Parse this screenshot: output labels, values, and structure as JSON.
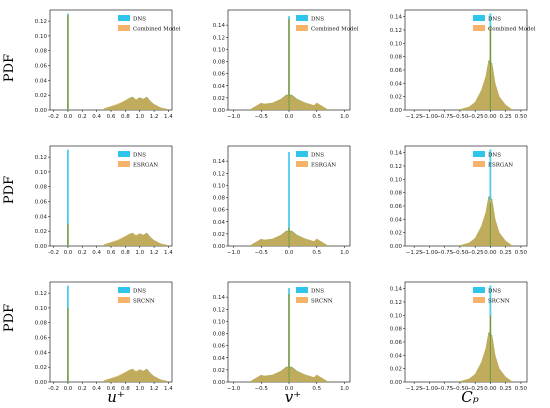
{
  "figure": {
    "row_ylabel": "PDF",
    "col_xlabels": [
      "u⁺",
      "v⁺",
      "Cₚ"
    ]
  },
  "colors": {
    "dns": "#2ec4ec",
    "model": "#f7b36a",
    "overlap": "#6e9a3a"
  },
  "chart_data": [
    {
      "type": "area",
      "row": 0,
      "col": 0,
      "legend": [
        "DNS",
        "Combined Model"
      ],
      "xlim": [
        -0.25,
        1.45
      ],
      "ylim": [
        0,
        0.135
      ],
      "xticks": [
        -0.2,
        0.0,
        0.2,
        0.4,
        0.6,
        0.8,
        1.0,
        1.2,
        1.4
      ],
      "xtick_labels": [
        "-0.2",
        "0.0",
        "0.2",
        "0.4",
        "0.6",
        "0.8",
        "1.0",
        "1.2",
        "1.4"
      ],
      "yticks": [
        0,
        0.02,
        0.04,
        0.06,
        0.08,
        0.1,
        0.12
      ],
      "ytick_labels": [
        "0.00",
        "0.02",
        "0.04",
        "0.06",
        "0.08",
        "0.10",
        "0.12"
      ],
      "series": [
        {
          "name": "DNS",
          "spikes": [
            [
              0.0,
              0.13
            ]
          ],
          "x": [
            0.5,
            0.6,
            0.7,
            0.8,
            0.85,
            0.9,
            0.95,
            1.0,
            1.05,
            1.1,
            1.15,
            1.2,
            1.3,
            1.4
          ],
          "y": [
            0.002,
            0.005,
            0.008,
            0.013,
            0.016,
            0.018,
            0.014,
            0.017,
            0.015,
            0.018,
            0.012,
            0.008,
            0.003,
            0.001
          ]
        },
        {
          "name": "Combined Model",
          "spikes": [
            [
              0.0,
              0.128
            ]
          ],
          "x": [
            0.5,
            0.6,
            0.7,
            0.8,
            0.85,
            0.9,
            0.95,
            1.0,
            1.05,
            1.1,
            1.15,
            1.2,
            1.3,
            1.4
          ],
          "y": [
            0.002,
            0.005,
            0.009,
            0.013,
            0.016,
            0.017,
            0.014,
            0.016,
            0.015,
            0.017,
            0.012,
            0.008,
            0.003,
            0.001
          ]
        }
      ]
    },
    {
      "type": "area",
      "row": 0,
      "col": 1,
      "legend": [
        "DNS",
        "Combined Model"
      ],
      "xlim": [
        -1.1,
        1.1
      ],
      "ylim": [
        0,
        0.165
      ],
      "xticks": [
        -1.0,
        -0.5,
        0.0,
        0.5,
        1.0
      ],
      "xtick_labels": [
        "−1.0",
        "−0.5",
        "0.0",
        "0.5",
        "1.0"
      ],
      "yticks": [
        0,
        0.02,
        0.04,
        0.06,
        0.08,
        0.1,
        0.12,
        0.14
      ],
      "ytick_labels": [
        "0.00",
        "0.02",
        "0.04",
        "0.06",
        "0.08",
        "0.10",
        "0.12",
        "0.14"
      ],
      "series": [
        {
          "name": "DNS",
          "spikes": [
            [
              0.0,
              0.155
            ]
          ],
          "x": [
            -0.7,
            -0.5,
            -0.45,
            -0.3,
            -0.15,
            -0.05,
            0.05,
            0.15,
            0.3,
            0.45,
            0.5,
            0.7
          ],
          "y": [
            0.001,
            0.012,
            0.01,
            0.012,
            0.018,
            0.025,
            0.025,
            0.018,
            0.012,
            0.008,
            0.012,
            0.001
          ]
        },
        {
          "name": "Combined Model",
          "spikes": [
            [
              0.0,
              0.15
            ]
          ],
          "x": [
            -0.7,
            -0.5,
            -0.45,
            -0.3,
            -0.15,
            -0.05,
            0.05,
            0.15,
            0.3,
            0.45,
            0.5,
            0.7
          ],
          "y": [
            0.001,
            0.012,
            0.01,
            0.012,
            0.017,
            0.024,
            0.024,
            0.017,
            0.012,
            0.008,
            0.012,
            0.001
          ]
        }
      ]
    },
    {
      "type": "area",
      "row": 0,
      "col": 2,
      "legend": [
        "DNS",
        "Combined Model"
      ],
      "xlim": [
        -1.4,
        0.6
      ],
      "ylim": [
        0,
        0.15
      ],
      "xticks": [
        -1.25,
        -1.0,
        -0.75,
        -0.5,
        -0.25,
        0.0,
        0.25,
        0.5
      ],
      "xtick_labels": [
        "−1.25",
        "−1.00",
        "−0.75",
        "−0.50",
        "−0.25",
        "0.00",
        "0.25",
        "0.50"
      ],
      "yticks": [
        0,
        0.02,
        0.04,
        0.06,
        0.08,
        0.1,
        0.12,
        0.14
      ],
      "ytick_labels": [
        "0.00",
        "0.02",
        "0.04",
        "0.06",
        "0.08",
        "0.10",
        "0.12",
        "0.14"
      ],
      "series": [
        {
          "name": "DNS",
          "spikes": [
            [
              0.0,
              0.145
            ]
          ],
          "x": [
            -0.5,
            -0.35,
            -0.25,
            -0.15,
            -0.08,
            -0.03,
            0.03,
            0.08,
            0.15,
            0.25,
            0.35
          ],
          "y": [
            0.001,
            0.005,
            0.012,
            0.03,
            0.05,
            0.075,
            0.07,
            0.04,
            0.02,
            0.008,
            0.001
          ]
        },
        {
          "name": "Combined Model",
          "spikes": [
            [
              0.0,
              0.125
            ]
          ],
          "x": [
            -0.5,
            -0.35,
            -0.25,
            -0.15,
            -0.08,
            -0.03,
            0.03,
            0.08,
            0.15,
            0.25,
            0.35
          ],
          "y": [
            0.001,
            0.005,
            0.012,
            0.03,
            0.05,
            0.072,
            0.068,
            0.04,
            0.02,
            0.008,
            0.001
          ]
        }
      ]
    },
    {
      "type": "area",
      "row": 1,
      "col": 0,
      "legend": [
        "DNS",
        "ESRGAN"
      ],
      "xlim": [
        -0.25,
        1.45
      ],
      "ylim": [
        0,
        0.135
      ],
      "xticks": [
        -0.2,
        0.0,
        0.2,
        0.4,
        0.6,
        0.8,
        1.0,
        1.2,
        1.4
      ],
      "xtick_labels": [
        "-0.2",
        "0.0",
        "0.2",
        "0.4",
        "0.6",
        "0.8",
        "1.0",
        "1.2",
        "1.4"
      ],
      "yticks": [
        0,
        0.02,
        0.04,
        0.06,
        0.08,
        0.1,
        0.12
      ],
      "ytick_labels": [
        "0.00",
        "0.02",
        "0.04",
        "0.06",
        "0.08",
        "0.10",
        "0.12"
      ],
      "series": [
        {
          "name": "DNS",
          "spikes": [
            [
              0.0,
              0.13
            ]
          ],
          "x": [
            0.5,
            0.6,
            0.7,
            0.8,
            0.85,
            0.9,
            0.95,
            1.0,
            1.05,
            1.1,
            1.15,
            1.2,
            1.3,
            1.4
          ],
          "y": [
            0.002,
            0.005,
            0.008,
            0.013,
            0.016,
            0.018,
            0.014,
            0.017,
            0.015,
            0.018,
            0.012,
            0.008,
            0.003,
            0.001
          ]
        },
        {
          "name": "ESRGAN",
          "spikes": [
            [
              0.0,
              0.03
            ]
          ],
          "x": [
            0.5,
            0.6,
            0.7,
            0.8,
            0.85,
            0.9,
            0.95,
            1.0,
            1.05,
            1.1,
            1.15,
            1.2,
            1.3,
            1.4
          ],
          "y": [
            0.002,
            0.005,
            0.009,
            0.014,
            0.016,
            0.018,
            0.015,
            0.017,
            0.015,
            0.017,
            0.012,
            0.008,
            0.003,
            0.001
          ]
        }
      ]
    },
    {
      "type": "area",
      "row": 1,
      "col": 1,
      "legend": [
        "DNS",
        "ESRGAN"
      ],
      "xlim": [
        -1.1,
        1.1
      ],
      "ylim": [
        0,
        0.165
      ],
      "xticks": [
        -1.0,
        -0.5,
        0.0,
        0.5,
        1.0
      ],
      "xtick_labels": [
        "−1.0",
        "−0.5",
        "0.0",
        "0.5",
        "1.0"
      ],
      "yticks": [
        0,
        0.02,
        0.04,
        0.06,
        0.08,
        0.1,
        0.12,
        0.14
      ],
      "ytick_labels": [
        "0.00",
        "0.02",
        "0.04",
        "0.06",
        "0.08",
        "0.10",
        "0.12",
        "0.14"
      ],
      "series": [
        {
          "name": "DNS",
          "spikes": [
            [
              0.0,
              0.155
            ]
          ],
          "x": [
            -0.7,
            -0.5,
            -0.45,
            -0.3,
            -0.15,
            -0.05,
            0.05,
            0.15,
            0.3,
            0.45,
            0.5,
            0.7
          ],
          "y": [
            0.001,
            0.012,
            0.01,
            0.012,
            0.018,
            0.025,
            0.025,
            0.018,
            0.012,
            0.008,
            0.012,
            0.001
          ]
        },
        {
          "name": "ESRGAN",
          "spikes": [
            [
              0.0,
              0.03
            ]
          ],
          "x": [
            -0.7,
            -0.5,
            -0.45,
            -0.3,
            -0.15,
            -0.05,
            0.05,
            0.15,
            0.3,
            0.45,
            0.5,
            0.7
          ],
          "y": [
            0.001,
            0.012,
            0.01,
            0.012,
            0.017,
            0.024,
            0.024,
            0.017,
            0.012,
            0.008,
            0.012,
            0.001
          ]
        }
      ]
    },
    {
      "type": "area",
      "row": 1,
      "col": 2,
      "legend": [
        "DNS",
        "ESRGAN"
      ],
      "xlim": [
        -1.4,
        0.6
      ],
      "ylim": [
        0,
        0.15
      ],
      "xticks": [
        -1.25,
        -1.0,
        -0.75,
        -0.5,
        -0.25,
        0.0,
        0.25,
        0.5
      ],
      "xtick_labels": [
        "−1.25",
        "−1.00",
        "−0.75",
        "−0.50",
        "−0.25",
        "0.00",
        "0.25",
        "0.50"
      ],
      "yticks": [
        0,
        0.02,
        0.04,
        0.06,
        0.08,
        0.1,
        0.12,
        0.14
      ],
      "ytick_labels": [
        "0.00",
        "0.02",
        "0.04",
        "0.06",
        "0.08",
        "0.10",
        "0.12",
        "0.14"
      ],
      "series": [
        {
          "name": "DNS",
          "spikes": [
            [
              0.0,
              0.145
            ]
          ],
          "x": [
            -0.5,
            -0.35,
            -0.25,
            -0.15,
            -0.08,
            -0.03,
            0.03,
            0.08,
            0.15,
            0.25,
            0.35
          ],
          "y": [
            0.001,
            0.005,
            0.012,
            0.03,
            0.05,
            0.075,
            0.07,
            0.04,
            0.02,
            0.008,
            0.001
          ]
        },
        {
          "name": "ESRGAN",
          "spikes": [
            [
              0.0,
              0.065
            ]
          ],
          "x": [
            -0.5,
            -0.35,
            -0.25,
            -0.15,
            -0.08,
            -0.03,
            0.03,
            0.08,
            0.15,
            0.25,
            0.35
          ],
          "y": [
            0.001,
            0.005,
            0.012,
            0.03,
            0.05,
            0.072,
            0.068,
            0.04,
            0.02,
            0.008,
            0.001
          ]
        }
      ]
    },
    {
      "type": "area",
      "row": 2,
      "col": 0,
      "legend": [
        "DNS",
        "SRCNN"
      ],
      "xlim": [
        -0.25,
        1.45
      ],
      "ylim": [
        0,
        0.135
      ],
      "xticks": [
        -0.2,
        0.0,
        0.2,
        0.4,
        0.6,
        0.8,
        1.0,
        1.2,
        1.4
      ],
      "xtick_labels": [
        "-0.2",
        "0.0",
        "0.2",
        "0.4",
        "0.6",
        "0.8",
        "1.0",
        "1.2",
        "1.4"
      ],
      "yticks": [
        0,
        0.02,
        0.04,
        0.06,
        0.08,
        0.1,
        0.12
      ],
      "ytick_labels": [
        "0.00",
        "0.02",
        "0.04",
        "0.06",
        "0.08",
        "0.10",
        "0.12"
      ],
      "series": [
        {
          "name": "DNS",
          "spikes": [
            [
              0.0,
              0.13
            ]
          ],
          "x": [
            0.5,
            0.6,
            0.7,
            0.8,
            0.85,
            0.9,
            0.95,
            1.0,
            1.05,
            1.1,
            1.15,
            1.2,
            1.3,
            1.4
          ],
          "y": [
            0.002,
            0.005,
            0.008,
            0.013,
            0.016,
            0.018,
            0.014,
            0.017,
            0.015,
            0.018,
            0.012,
            0.008,
            0.003,
            0.001
          ]
        },
        {
          "name": "SRCNN",
          "spikes": [
            [
              0.0,
              0.1
            ]
          ],
          "x": [
            0.5,
            0.6,
            0.7,
            0.8,
            0.85,
            0.9,
            0.95,
            1.0,
            1.05,
            1.1,
            1.15,
            1.2,
            1.3,
            1.4
          ],
          "y": [
            0.002,
            0.005,
            0.009,
            0.014,
            0.016,
            0.018,
            0.015,
            0.017,
            0.015,
            0.017,
            0.012,
            0.008,
            0.003,
            0.001
          ]
        }
      ]
    },
    {
      "type": "area",
      "row": 2,
      "col": 1,
      "legend": [
        "DNS",
        "SRCNN"
      ],
      "xlim": [
        -1.1,
        1.1
      ],
      "ylim": [
        0,
        0.165
      ],
      "xticks": [
        -1.0,
        -0.5,
        0.0,
        0.5,
        1.0
      ],
      "xtick_labels": [
        "−1.0",
        "−0.5",
        "0.0",
        "0.5",
        "1.0"
      ],
      "yticks": [
        0,
        0.02,
        0.04,
        0.06,
        0.08,
        0.1,
        0.12,
        0.14
      ],
      "ytick_labels": [
        "0.00",
        "0.02",
        "0.04",
        "0.06",
        "0.08",
        "0.10",
        "0.12",
        "0.14"
      ],
      "series": [
        {
          "name": "DNS",
          "spikes": [
            [
              0.0,
              0.155
            ]
          ],
          "x": [
            -0.7,
            -0.5,
            -0.45,
            -0.3,
            -0.15,
            -0.05,
            0.05,
            0.15,
            0.3,
            0.45,
            0.5,
            0.7
          ],
          "y": [
            0.001,
            0.012,
            0.01,
            0.012,
            0.018,
            0.025,
            0.025,
            0.018,
            0.012,
            0.008,
            0.012,
            0.001
          ]
        },
        {
          "name": "SRCNN",
          "spikes": [
            [
              0.0,
              0.145
            ]
          ],
          "x": [
            -0.7,
            -0.5,
            -0.45,
            -0.3,
            -0.15,
            -0.05,
            0.05,
            0.15,
            0.3,
            0.45,
            0.5,
            0.7
          ],
          "y": [
            0.001,
            0.012,
            0.01,
            0.012,
            0.017,
            0.024,
            0.024,
            0.017,
            0.012,
            0.008,
            0.012,
            0.001
          ]
        }
      ]
    },
    {
      "type": "area",
      "row": 2,
      "col": 2,
      "legend": [
        "DNS",
        "SRCNN"
      ],
      "xlim": [
        -1.4,
        0.6
      ],
      "ylim": [
        0,
        0.15
      ],
      "xticks": [
        -1.25,
        -1.0,
        -0.75,
        -0.5,
        -0.25,
        0.0,
        0.25,
        0.5
      ],
      "xtick_labels": [
        "−1.25",
        "−1.00",
        "−0.75",
        "−0.50",
        "−0.25",
        "0.00",
        "0.25",
        "0.50"
      ],
      "yticks": [
        0,
        0.02,
        0.04,
        0.06,
        0.08,
        0.1,
        0.12,
        0.14
      ],
      "ytick_labels": [
        "0.00",
        "0.02",
        "0.04",
        "0.06",
        "0.08",
        "0.10",
        "0.12",
        "0.14"
      ],
      "series": [
        {
          "name": "DNS",
          "spikes": [
            [
              0.0,
              0.145
            ]
          ],
          "x": [
            -0.5,
            -0.35,
            -0.25,
            -0.15,
            -0.08,
            -0.03,
            0.03,
            0.08,
            0.15,
            0.25,
            0.35
          ],
          "y": [
            0.001,
            0.005,
            0.012,
            0.03,
            0.05,
            0.075,
            0.07,
            0.04,
            0.02,
            0.008,
            0.001
          ]
        },
        {
          "name": "SRCNN",
          "spikes": [
            [
              0.0,
              0.1
            ]
          ],
          "x": [
            -0.5,
            -0.35,
            -0.25,
            -0.15,
            -0.08,
            -0.03,
            0.03,
            0.08,
            0.15,
            0.25,
            0.35
          ],
          "y": [
            0.001,
            0.005,
            0.012,
            0.03,
            0.05,
            0.072,
            0.068,
            0.04,
            0.02,
            0.008,
            0.001
          ]
        }
      ]
    }
  ]
}
